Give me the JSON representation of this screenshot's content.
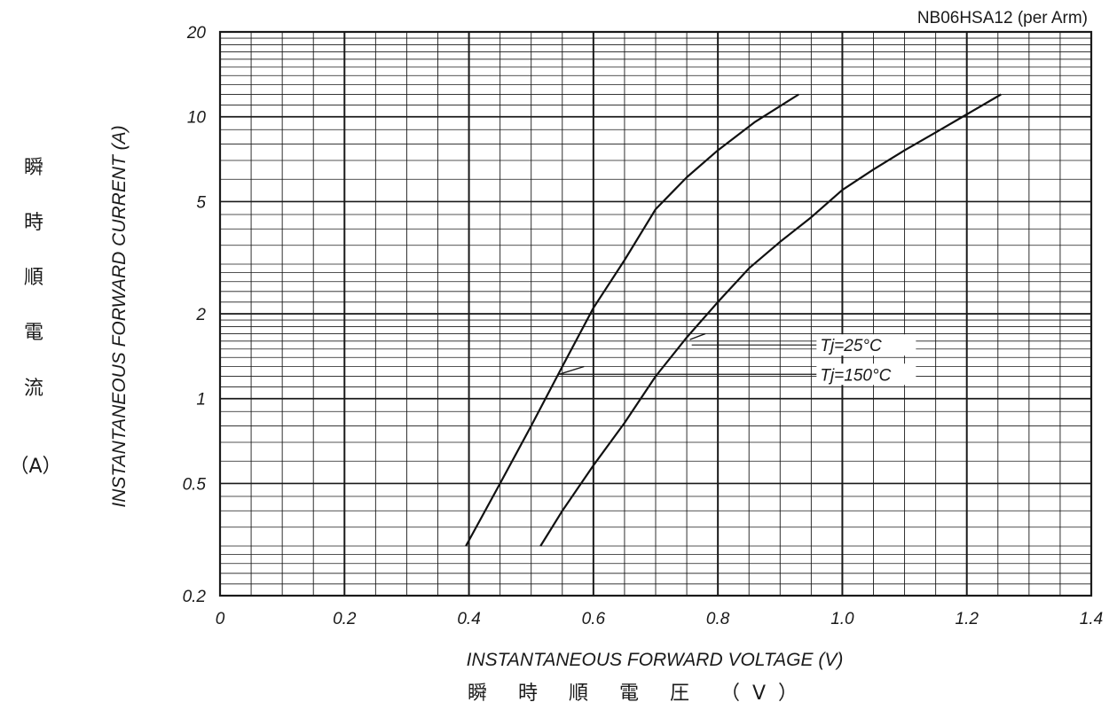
{
  "chart_data": {
    "type": "line",
    "title": "NB06HSA12 (per Arm)",
    "xlabel": "INSTANTANEOUS FORWARD VOLTAGE (V)",
    "xlabel_jp": "瞬 時 順 電 圧 （V）",
    "ylabel": "INSTANTANEOUS FORWARD CURRENT (A)",
    "ylabel_jp": [
      "瞬",
      "時",
      "順",
      "電",
      "流",
      "（A）"
    ],
    "xlim": [
      0,
      1.4
    ],
    "ylim": [
      0.2,
      20
    ],
    "y_scale": "log",
    "grid": true,
    "x_ticks": [
      "0",
      "0.2",
      "0.4",
      "0.6",
      "0.8",
      "1.0",
      "1.2",
      "1.4"
    ],
    "y_ticks": [
      {
        "value": 20,
        "label": "20"
      },
      {
        "value": 10,
        "label": "10"
      },
      {
        "value": 5,
        "label": "5"
      },
      {
        "value": 2,
        "label": "2"
      },
      {
        "value": 1,
        "label": "1"
      },
      {
        "value": 0.5,
        "label": "0.5"
      },
      {
        "value": 0.2,
        "label": "0.2"
      }
    ],
    "series": [
      {
        "name": "Tj=25°C",
        "x": [
          0.395,
          0.45,
          0.5,
          0.55,
          0.6,
          0.65,
          0.7,
          0.75,
          0.8,
          0.86,
          0.93
        ],
        "y": [
          0.3,
          0.5,
          0.8,
          1.3,
          2.1,
          3.1,
          4.7,
          6.1,
          7.6,
          9.6,
          12.0
        ]
      },
      {
        "name": "Tj=150°C",
        "x": [
          0.515,
          0.55,
          0.6,
          0.65,
          0.7,
          0.75,
          0.8,
          0.85,
          0.9,
          0.95,
          1.0,
          1.05,
          1.1,
          1.15,
          1.2,
          1.255
        ],
        "y": [
          0.3,
          0.4,
          0.58,
          0.82,
          1.2,
          1.65,
          2.2,
          2.9,
          3.6,
          4.4,
          5.5,
          6.5,
          7.6,
          8.8,
          10.2,
          12.0
        ]
      }
    ],
    "legend_labels": [
      "Tj=25°C",
      "Tj=150°C"
    ]
  }
}
